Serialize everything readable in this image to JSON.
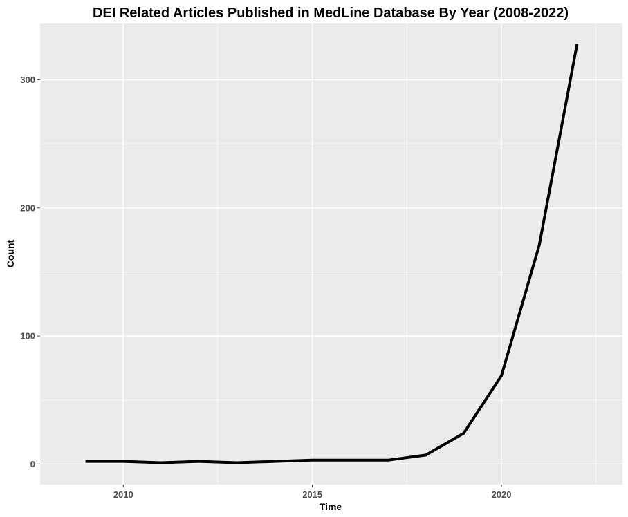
{
  "chart_data": {
    "type": "line",
    "title": "DEI Related Articles Published in MedLine Database By Year (2008-2022)",
    "xlabel": "Time",
    "ylabel": "Count",
    "x": [
      2009,
      2010,
      2011,
      2012,
      2013,
      2014,
      2015,
      2016,
      2017,
      2018,
      2019,
      2020,
      2021,
      2022
    ],
    "y": [
      2,
      2,
      1,
      2,
      1,
      2,
      3,
      3,
      3,
      7,
      24,
      69,
      171,
      328
    ],
    "xlim": [
      2007.8,
      2023.2
    ],
    "ylim": [
      -16,
      344
    ],
    "x_ticks": [
      2010,
      2015,
      2020
    ],
    "x_tick_labels": [
      "2010",
      "2015",
      "2020"
    ],
    "y_ticks": [
      0,
      100,
      200,
      300
    ],
    "y_tick_labels": [
      "0",
      "100",
      "200",
      "300"
    ],
    "grid": true,
    "legend": "none",
    "colors": {
      "panel": "#ebebeb",
      "grid": "#ffffff",
      "line": "#000000",
      "tick_text": "#4d4d4d"
    }
  }
}
